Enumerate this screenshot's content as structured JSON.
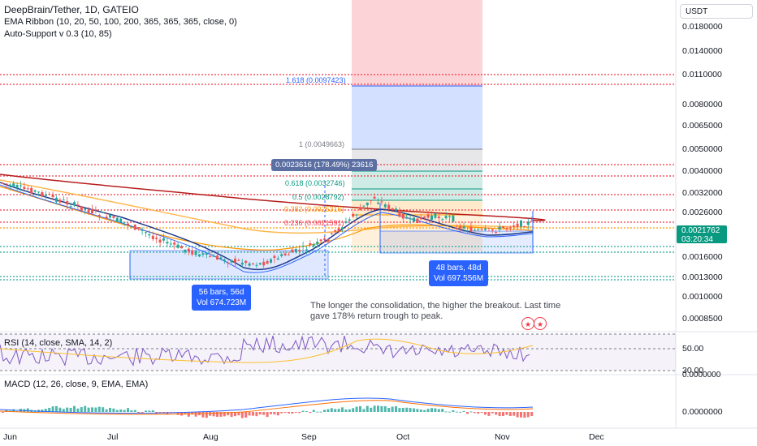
{
  "header": {
    "symbol_line": "DeepBrain/Tether, 1D, GATEIO",
    "ema_line": "EMA Ribbon (10, 20, 50, 100, 200, 365, 365, 365, close, 0)",
    "support_line": "Auto-Support v 0.3 (10, 85)"
  },
  "currency_button": "USDT",
  "price_axis": [
    "0.0180000",
    "0.0140000",
    "0.0110000",
    "0.0080000",
    "0.0065000",
    "0.0050000",
    "0.0040000",
    "0.0032000",
    "0.0026000",
    "0.0016000",
    "0.0013000",
    "0.0010000",
    "0.0008500"
  ],
  "current_price": {
    "value": "0.0021762",
    "countdown": "03:20:34",
    "color": "#089981"
  },
  "fib_levels": [
    {
      "label": "1.618 (0.0097423)",
      "color": "#2962ff"
    },
    {
      "label": "1 (0.0049663)",
      "color": "#787b86"
    },
    {
      "label": "0.618 (0.0032746)",
      "color": "#089981"
    },
    {
      "label": "0.5 (0.0028792)",
      "color": "#089981"
    },
    {
      "label": "0.382 (0.0025316)",
      "color": "#ff9800"
    },
    {
      "label": "0.236 (0.0021591)",
      "color": "#f23645"
    }
  ],
  "measure_tooltip": "0.0023616 (178.49%) 23616",
  "bar_boxes": [
    {
      "line1": "56 bars, 56d",
      "line2": "Vol 674.723M"
    },
    {
      "line1": "48 bars, 48d",
      "line2": "Vol 697.556M"
    }
  ],
  "note": "The longer the consolidation, the higher the breakout. Last time gave 178% return trough to peak.",
  "rsi": {
    "label": "RSI (14, close, SMA, 14, 2)",
    "axis": [
      "50.00",
      "30.00"
    ]
  },
  "macd": {
    "label": "MACD (12, 26, close, 9, EMA, EMA)",
    "axis": [
      "0.0000000",
      "0.0000000"
    ]
  },
  "x_axis": [
    "Jun",
    "Jul",
    "Aug",
    "Sep",
    "Oct",
    "Nov",
    "Dec"
  ],
  "colors": {
    "up": "#26a69a",
    "down": "#ef5350",
    "ema_red": "#b71c1c",
    "ema_orange": "#ffb74d",
    "ema_blue": "#1e3a8a"
  }
}
